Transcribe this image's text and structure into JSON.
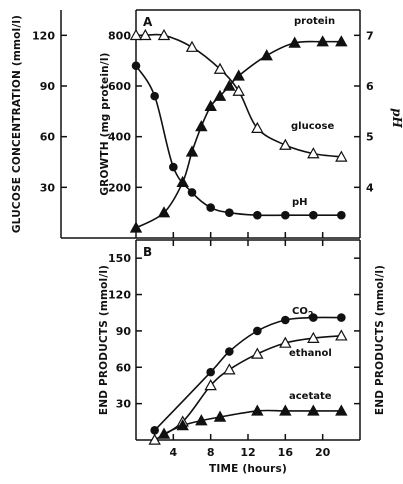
{
  "chart_data": [
    {
      "panel": "A",
      "type": "line",
      "xlabel": "",
      "xlim": [
        0,
        24
      ],
      "left_outer_axis": {
        "label": "GLUCOSE CONCENTRATION (mmol/l)",
        "lim": [
          0,
          135
        ],
        "ticks": [
          30,
          60,
          90,
          120
        ]
      },
      "left_inner_axis": {
        "label": "GROWTH (mg protein/l)",
        "lim": [
          0,
          900
        ],
        "ticks": [
          200,
          400,
          600,
          800
        ]
      },
      "right_axis": {
        "label": "pH",
        "lim": [
          3,
          7.5
        ],
        "ticks": [
          4,
          5,
          6,
          7
        ]
      },
      "series": [
        {
          "name": "protein",
          "axis": "left_inner",
          "marker": "filled-triangle",
          "x": [
            0,
            3,
            5,
            6,
            7,
            8,
            9,
            10,
            11,
            14,
            17,
            20,
            22
          ],
          "y": [
            40,
            100,
            220,
            340,
            440,
            520,
            560,
            600,
            640,
            720,
            770,
            775,
            775
          ]
        },
        {
          "name": "glucose",
          "axis": "left_outer",
          "marker": "open-triangle",
          "x": [
            0,
            1,
            3,
            6,
            9,
            11,
            13,
            16,
            19,
            22
          ],
          "y": [
            120,
            120,
            120,
            113,
            100,
            87,
            65,
            55,
            50,
            48
          ]
        },
        {
          "name": "pH",
          "axis": "right",
          "marker": "filled-circle",
          "x": [
            0,
            2,
            4,
            6,
            8,
            10,
            13,
            16,
            19,
            22
          ],
          "y": [
            6.4,
            5.8,
            4.4,
            3.9,
            3.6,
            3.5,
            3.45,
            3.45,
            3.45,
            3.45
          ]
        }
      ]
    },
    {
      "panel": "B",
      "type": "line",
      "xlabel": "TIME (hours)",
      "xlim": [
        0,
        24
      ],
      "xticks": [
        4,
        8,
        12,
        16,
        20
      ],
      "left_axis": {
        "label": "END PRODUCTS (mmol/l)",
        "lim": [
          0,
          165
        ],
        "ticks": [
          30,
          60,
          90,
          120,
          150
        ]
      },
      "right_axis": {
        "label": "END PRODUCTS (mmol/l)"
      },
      "series": [
        {
          "name": "CO2",
          "marker": "filled-circle",
          "x": [
            2,
            8,
            10,
            13,
            16,
            19,
            22
          ],
          "y": [
            8,
            56,
            73,
            90,
            99,
            101,
            101
          ]
        },
        {
          "name": "ethanol",
          "marker": "open-triangle",
          "x": [
            2,
            5,
            8,
            10,
            13,
            16,
            19,
            22
          ],
          "y": [
            0,
            15,
            45,
            58,
            71,
            80,
            84,
            86
          ]
        },
        {
          "name": "acetate",
          "marker": "filled-triangle",
          "x": [
            3,
            5,
            7,
            9,
            13,
            16,
            19,
            22
          ],
          "y": [
            5,
            12,
            16,
            19,
            24,
            24,
            24,
            24
          ]
        }
      ]
    }
  ],
  "labels": {
    "panel_a": "A",
    "panel_b": "B",
    "protein": "protein",
    "glucose": "glucose",
    "ph_series": "pH",
    "co2_main": "CO",
    "co2_sub": "2",
    "ethanol": "ethanol",
    "acetate": "acetate",
    "ph_axis": "pH"
  }
}
